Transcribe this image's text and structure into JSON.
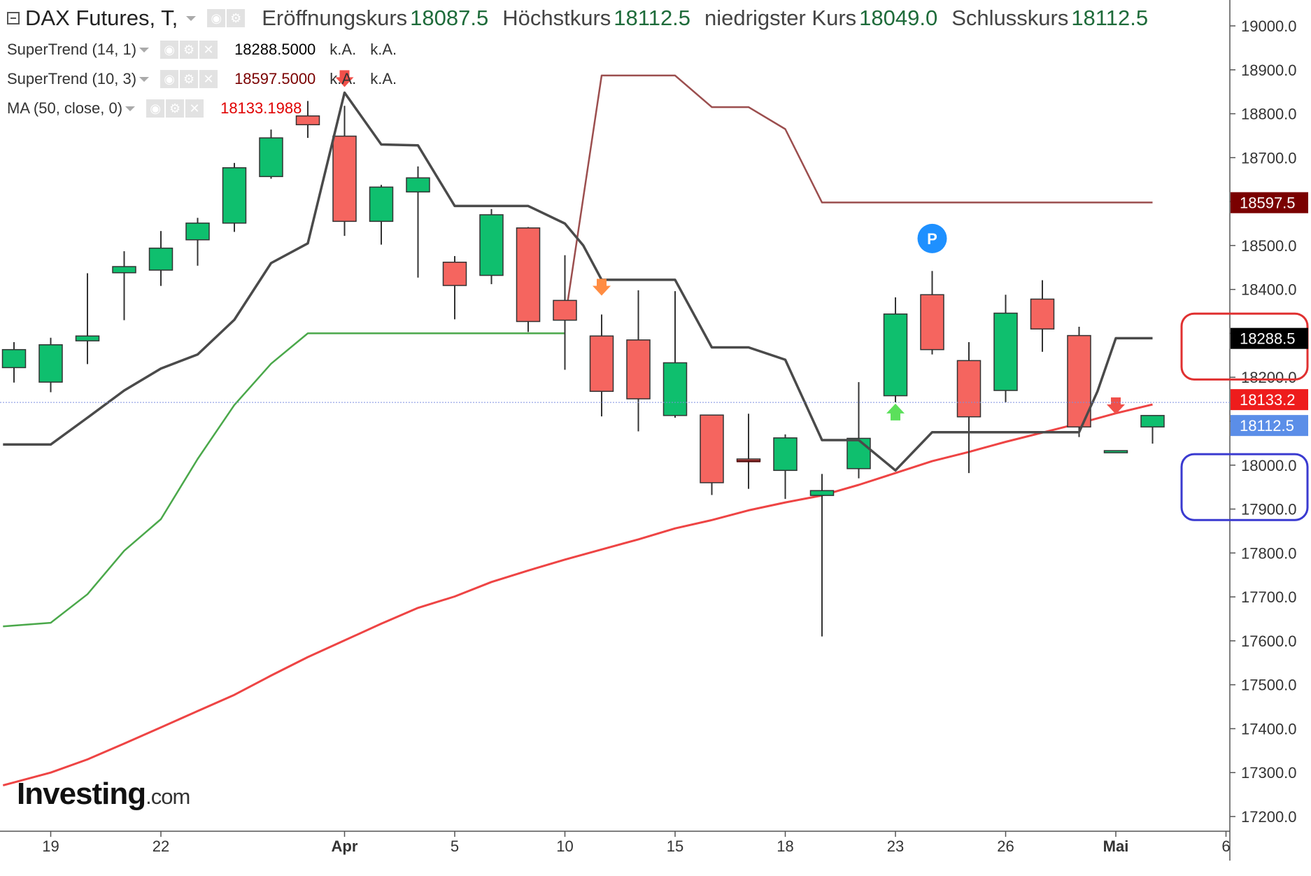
{
  "instrument": {
    "title": "DAX Futures, T,",
    "open_label": "Eröffnungskurs",
    "open": "18087.5",
    "high_label": "Höchstkurs",
    "high": "18112.5",
    "low_label": "niedrigster Kurs",
    "low": "18049.0",
    "close_label": "Schlusskurs",
    "close": "18112.5"
  },
  "indicators": [
    {
      "label": "SuperTrend (14, 1)",
      "value": "18288.5000",
      "extra1": "k.A.",
      "extra2": "k.A.",
      "color": "#000000"
    },
    {
      "label": "SuperTrend (10, 3)",
      "value": "18597.5000",
      "extra1": "k.A.",
      "extra2": "k.A.",
      "color": "#7a0000"
    },
    {
      "label": "MA (50, close, 0)",
      "value": "18133.1988",
      "color": "#e00000"
    }
  ],
  "logo": {
    "brand": "Investing",
    "domain": ".com"
  },
  "chart_data": {
    "type": "candlestick",
    "ylim": [
      17150,
      19050
    ],
    "y_ticks": [
      "19000.0",
      "18900.0",
      "18800.0",
      "18700.0",
      "18600.0",
      "18500.0",
      "18400.0",
      "18300.0",
      "18200.0",
      "18100.0",
      "18000.0",
      "17900.0",
      "17800.0",
      "17700.0",
      "17600.0",
      "17500.0",
      "17400.0",
      "17300.0",
      "17200.0"
    ],
    "x_ticks": [
      {
        "label": "19",
        "index": 1
      },
      {
        "label": "22",
        "index": 4
      },
      {
        "label": "Apr",
        "index": 9,
        "bold": true
      },
      {
        "label": "5",
        "index": 12
      },
      {
        "label": "10",
        "index": 15
      },
      {
        "label": "15",
        "index": 18
      },
      {
        "label": "18",
        "index": 21
      },
      {
        "label": "23",
        "index": 24
      },
      {
        "label": "26",
        "index": 27
      },
      {
        "label": "Mai",
        "index": 30,
        "bold": true
      },
      {
        "label": "6",
        "index": 33
      }
    ],
    "colors": {
      "up": "#0fbf6e",
      "down": "#f5655f",
      "supertrend_fast": "#4a4a4a",
      "supertrend_slow": "#9b4e4e",
      "supertrend_slow_support": "#4aa84a",
      "ma": "#ee4444"
    },
    "candles": [
      {
        "o": 18222,
        "h": 18280,
        "l": 18188,
        "c": 18263
      },
      {
        "o": 18189,
        "h": 18290,
        "l": 18166,
        "c": 18274
      },
      {
        "o": 18283,
        "h": 18437,
        "l": 18230,
        "c": 18294
      },
      {
        "o": 18438,
        "h": 18487,
        "l": 18330,
        "c": 18452
      },
      {
        "o": 18444,
        "h": 18533,
        "l": 18408,
        "c": 18494
      },
      {
        "o": 18513,
        "h": 18563,
        "l": 18454,
        "c": 18551
      },
      {
        "o": 18551,
        "h": 18688,
        "l": 18531,
        "c": 18677
      },
      {
        "o": 18657,
        "h": 18764,
        "l": 18652,
        "c": 18745
      },
      {
        "o": 18795,
        "h": 18829,
        "l": 18745,
        "c": 18775
      },
      {
        "o": 18749,
        "h": 18818,
        "l": 18522,
        "c": 18555
      },
      {
        "o": 18555,
        "h": 18638,
        "l": 18502,
        "c": 18633
      },
      {
        "o": 18622,
        "h": 18680,
        "l": 18427,
        "c": 18654
      },
      {
        "o": 18462,
        "h": 18476,
        "l": 18332,
        "c": 18409
      },
      {
        "o": 18432,
        "h": 18583,
        "l": 18412,
        "c": 18570
      },
      {
        "o": 18540,
        "h": 18542,
        "l": 18303,
        "c": 18327
      },
      {
        "o": 18375,
        "h": 18478,
        "l": 18217,
        "c": 18330
      },
      {
        "o": 18294,
        "h": 18343,
        "l": 18111,
        "c": 18168
      },
      {
        "o": 18285,
        "h": 18398,
        "l": 18077,
        "c": 18151
      },
      {
        "o": 18113,
        "h": 18396,
        "l": 18108,
        "c": 18233
      },
      {
        "o": 18114,
        "h": 18114,
        "l": 17932,
        "c": 17960
      },
      {
        "o": 18014,
        "h": 18117,
        "l": 17946,
        "c": 18009
      },
      {
        "o": 17988,
        "h": 18070,
        "l": 17923,
        "c": 18062
      },
      {
        "o": 17931,
        "h": 17980,
        "l": 17610,
        "c": 17942
      },
      {
        "o": 17992,
        "h": 18189,
        "l": 17970,
        "c": 18061
      },
      {
        "o": 18158,
        "h": 18382,
        "l": 18143,
        "c": 18344
      },
      {
        "o": 18388,
        "h": 18442,
        "l": 18252,
        "c": 18263
      },
      {
        "o": 18238,
        "h": 18280,
        "l": 17982,
        "c": 18110
      },
      {
        "o": 18170,
        "h": 18388,
        "l": 18143,
        "c": 18346
      },
      {
        "o": 18378,
        "h": 18421,
        "l": 18258,
        "c": 18310
      },
      {
        "o": 18295,
        "h": 18315,
        "l": 18064,
        "c": 18087
      },
      {
        "o": 18033,
        "h": 18033,
        "l": 18033,
        "c": 18033
      },
      {
        "o": 18087,
        "h": 18113,
        "l": 18049,
        "c": 18113
      }
    ],
    "supertrend_fast": [
      {
        "i": -0.3,
        "v": 18047
      },
      {
        "i": 1,
        "v": 18047
      },
      {
        "i": 2,
        "v": 18108
      },
      {
        "i": 3,
        "v": 18170
      },
      {
        "i": 4,
        "v": 18220
      },
      {
        "i": 5,
        "v": 18252
      },
      {
        "i": 6,
        "v": 18331
      },
      {
        "i": 7,
        "v": 18460
      },
      {
        "i": 8,
        "v": 18505
      },
      {
        "i": 9,
        "v": 18848
      },
      {
        "i": 10,
        "v": 18730
      },
      {
        "i": 11,
        "v": 18728
      },
      {
        "i": 12,
        "v": 18590
      },
      {
        "i": 13,
        "v": 18590
      },
      {
        "i": 14,
        "v": 18590
      },
      {
        "i": 15,
        "v": 18550
      },
      {
        "i": 15.5,
        "v": 18500
      },
      {
        "i": 16,
        "v": 18422
      },
      {
        "i": 17,
        "v": 18422
      },
      {
        "i": 18,
        "v": 18422
      },
      {
        "i": 19,
        "v": 18268
      },
      {
        "i": 20,
        "v": 18268
      },
      {
        "i": 21,
        "v": 18240
      },
      {
        "i": 22,
        "v": 18057
      },
      {
        "i": 23,
        "v": 18057
      },
      {
        "i": 24,
        "v": 17988
      },
      {
        "i": 25,
        "v": 18075
      },
      {
        "i": 26,
        "v": 18075
      },
      {
        "i": 27,
        "v": 18075
      },
      {
        "i": 28,
        "v": 18075
      },
      {
        "i": 29,
        "v": 18075
      },
      {
        "i": 29.5,
        "v": 18168
      },
      {
        "i": 30,
        "v": 18289
      },
      {
        "i": 31,
        "v": 18289
      }
    ],
    "supertrend_slow_support": [
      {
        "i": -0.3,
        "v": 17633
      },
      {
        "i": 1,
        "v": 17641
      },
      {
        "i": 2,
        "v": 17706
      },
      {
        "i": 3,
        "v": 17805
      },
      {
        "i": 4,
        "v": 17877
      },
      {
        "i": 5,
        "v": 18014
      },
      {
        "i": 6,
        "v": 18137
      },
      {
        "i": 7,
        "v": 18231
      },
      {
        "i": 8,
        "v": 18300
      },
      {
        "i": 9,
        "v": 18300
      },
      {
        "i": 10,
        "v": 18300
      },
      {
        "i": 11,
        "v": 18300
      },
      {
        "i": 12,
        "v": 18300
      },
      {
        "i": 13,
        "v": 18300
      },
      {
        "i": 14,
        "v": 18300
      },
      {
        "i": 15,
        "v": 18300
      }
    ],
    "supertrend_slow_resistance": [
      {
        "i": 15,
        "v": 18330
      },
      {
        "i": 16,
        "v": 18887
      },
      {
        "i": 17,
        "v": 18887
      },
      {
        "i": 18,
        "v": 18887
      },
      {
        "i": 19,
        "v": 18815
      },
      {
        "i": 20,
        "v": 18815
      },
      {
        "i": 21,
        "v": 18765
      },
      {
        "i": 22,
        "v": 18598
      },
      {
        "i": 31,
        "v": 18598
      }
    ],
    "ma": [
      {
        "i": -0.3,
        "v": 17271
      },
      {
        "i": 1,
        "v": 17300
      },
      {
        "i": 2,
        "v": 17330
      },
      {
        "i": 3,
        "v": 17366
      },
      {
        "i": 4,
        "v": 17403
      },
      {
        "i": 5,
        "v": 17440
      },
      {
        "i": 6,
        "v": 17477
      },
      {
        "i": 7,
        "v": 17521
      },
      {
        "i": 8,
        "v": 17563
      },
      {
        "i": 9,
        "v": 17601
      },
      {
        "i": 10,
        "v": 17639
      },
      {
        "i": 11,
        "v": 17675
      },
      {
        "i": 12,
        "v": 17701
      },
      {
        "i": 13,
        "v": 17734
      },
      {
        "i": 14,
        "v": 17760
      },
      {
        "i": 15,
        "v": 17785
      },
      {
        "i": 16,
        "v": 17808
      },
      {
        "i": 17,
        "v": 17831
      },
      {
        "i": 18,
        "v": 17856
      },
      {
        "i": 19,
        "v": 17875
      },
      {
        "i": 20,
        "v": 17897
      },
      {
        "i": 21,
        "v": 17915
      },
      {
        "i": 22,
        "v": 17931
      },
      {
        "i": 23,
        "v": 17955
      },
      {
        "i": 24,
        "v": 17982
      },
      {
        "i": 25,
        "v": 18009
      },
      {
        "i": 26,
        "v": 18030
      },
      {
        "i": 27,
        "v": 18053
      },
      {
        "i": 28,
        "v": 18074
      },
      {
        "i": 29,
        "v": 18095
      },
      {
        "i": 30,
        "v": 18118
      },
      {
        "i": 31,
        "v": 18138
      }
    ],
    "doji_mark": {
      "i": 20,
      "v": 18009
    },
    "signals": [
      {
        "type": "sell",
        "i": 9,
        "v": 18880,
        "color": "#f0504a"
      },
      {
        "type": "sell",
        "i": 16,
        "v": 18405,
        "color": "#ff8c42"
      },
      {
        "type": "buy",
        "i": 24,
        "v": 18121,
        "color": "#5be05b"
      },
      {
        "type": "sell",
        "i": 30,
        "v": 18135,
        "color": "#f0504a"
      }
    ],
    "p_marker": {
      "i": 25,
      "v": 18516,
      "label": "P"
    },
    "current_price_level": 18112.5,
    "price_badges": [
      {
        "label": "18597.5",
        "value": 18597.5,
        "bg": "#7a0000",
        "fg": "#ffffff"
      },
      {
        "label": "18288.5",
        "value": 18288.5,
        "bg": "#000000",
        "fg": "#ffffff"
      },
      {
        "label": "18133.2",
        "value": 18133.2,
        "bg": "#ee1c1c",
        "fg": "#ffffff"
      },
      {
        "label": "18112.5",
        "value": 18112.5,
        "bg": "#5b8ee8",
        "fg": "#ffffff"
      }
    ],
    "highlight_boxes": [
      {
        "color": "#e03030",
        "y_from": 18195,
        "y_to": 18345
      },
      {
        "color": "#3a3ad0",
        "y_from": 17875,
        "y_to": 18025
      }
    ]
  }
}
